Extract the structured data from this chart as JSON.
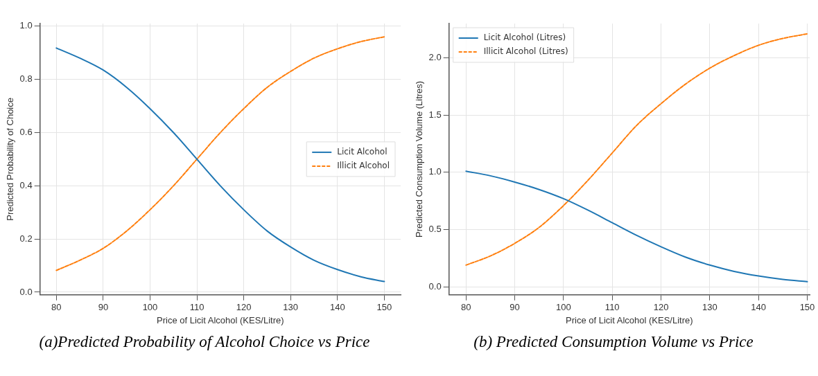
{
  "chart_data": [
    {
      "type": "line",
      "title": "(a)Predicted Probability of Alcohol Choice vs Price",
      "xlabel": "Price of Licit Alcohol (KES/Litre)",
      "ylabel": "Predicted Probability of Choice",
      "x": [
        80,
        85,
        90,
        95,
        100,
        105,
        110,
        115,
        120,
        125,
        130,
        135,
        140,
        145,
        150
      ],
      "series": [
        {
          "name": "Licit Alcohol",
          "color": "#1f77b4",
          "line_style": "solid",
          "values": [
            0.918,
            0.88,
            0.835,
            0.77,
            0.69,
            0.6,
            0.5,
            0.4,
            0.31,
            0.23,
            0.17,
            0.12,
            0.085,
            0.058,
            0.04
          ]
        },
        {
          "name": "Illicit Alcohol",
          "color": "#ff7f0e",
          "line_style": "dashed",
          "values": [
            0.082,
            0.12,
            0.165,
            0.23,
            0.31,
            0.4,
            0.5,
            0.6,
            0.69,
            0.77,
            0.83,
            0.88,
            0.915,
            0.942,
            0.96
          ]
        }
      ],
      "xlim": [
        76.5,
        153.5
      ],
      "xticks": [
        80,
        90,
        100,
        110,
        120,
        130,
        140,
        150
      ],
      "ylim": [
        -0.01,
        1.01
      ],
      "yticks": [
        {
          "value": 0,
          "label": "0.0"
        },
        0.2,
        0.4,
        0.6,
        0.8,
        {
          "value": 1,
          "label": "1.0"
        }
      ],
      "grid": true,
      "legend": "right",
      "marker": "none"
    },
    {
      "type": "line",
      "title": "(b) Predicted Consumption Volume vs Price",
      "xlabel": "Price of Licit Alcohol (KES/Litre)",
      "ylabel": "Predicted Consumption Volume (Litres)",
      "x": [
        80,
        85,
        90,
        95,
        100,
        105,
        110,
        115,
        120,
        125,
        130,
        135,
        140,
        145,
        150
      ],
      "series": [
        {
          "name": "Licit Alcohol (Litres)",
          "color": "#1f77b4",
          "line_style": "solid",
          "values": [
            1.01,
            0.97,
            0.915,
            0.85,
            0.77,
            0.67,
            0.56,
            0.45,
            0.35,
            0.26,
            0.19,
            0.135,
            0.095,
            0.065,
            0.045
          ]
        },
        {
          "name": "Illicit Alcohol (Litres)",
          "color": "#ff7f0e",
          "line_style": "dashed",
          "values": [
            0.19,
            0.27,
            0.38,
            0.52,
            0.71,
            0.93,
            1.17,
            1.41,
            1.6,
            1.77,
            1.91,
            2.02,
            2.11,
            2.17,
            2.21
          ]
        }
      ],
      "xlim": [
        76.5,
        150.5
      ],
      "xticks": [
        80,
        90,
        100,
        110,
        120,
        130,
        140,
        150
      ],
      "ylim": [
        -0.07,
        2.3
      ],
      "yticks": [
        {
          "value": 0,
          "label": "0.0"
        },
        0.5,
        {
          "value": 1,
          "label": "1.0"
        },
        1.5,
        {
          "value": 2,
          "label": "2.0"
        }
      ],
      "grid": true,
      "legend": "top left",
      "marker": "none"
    }
  ]
}
